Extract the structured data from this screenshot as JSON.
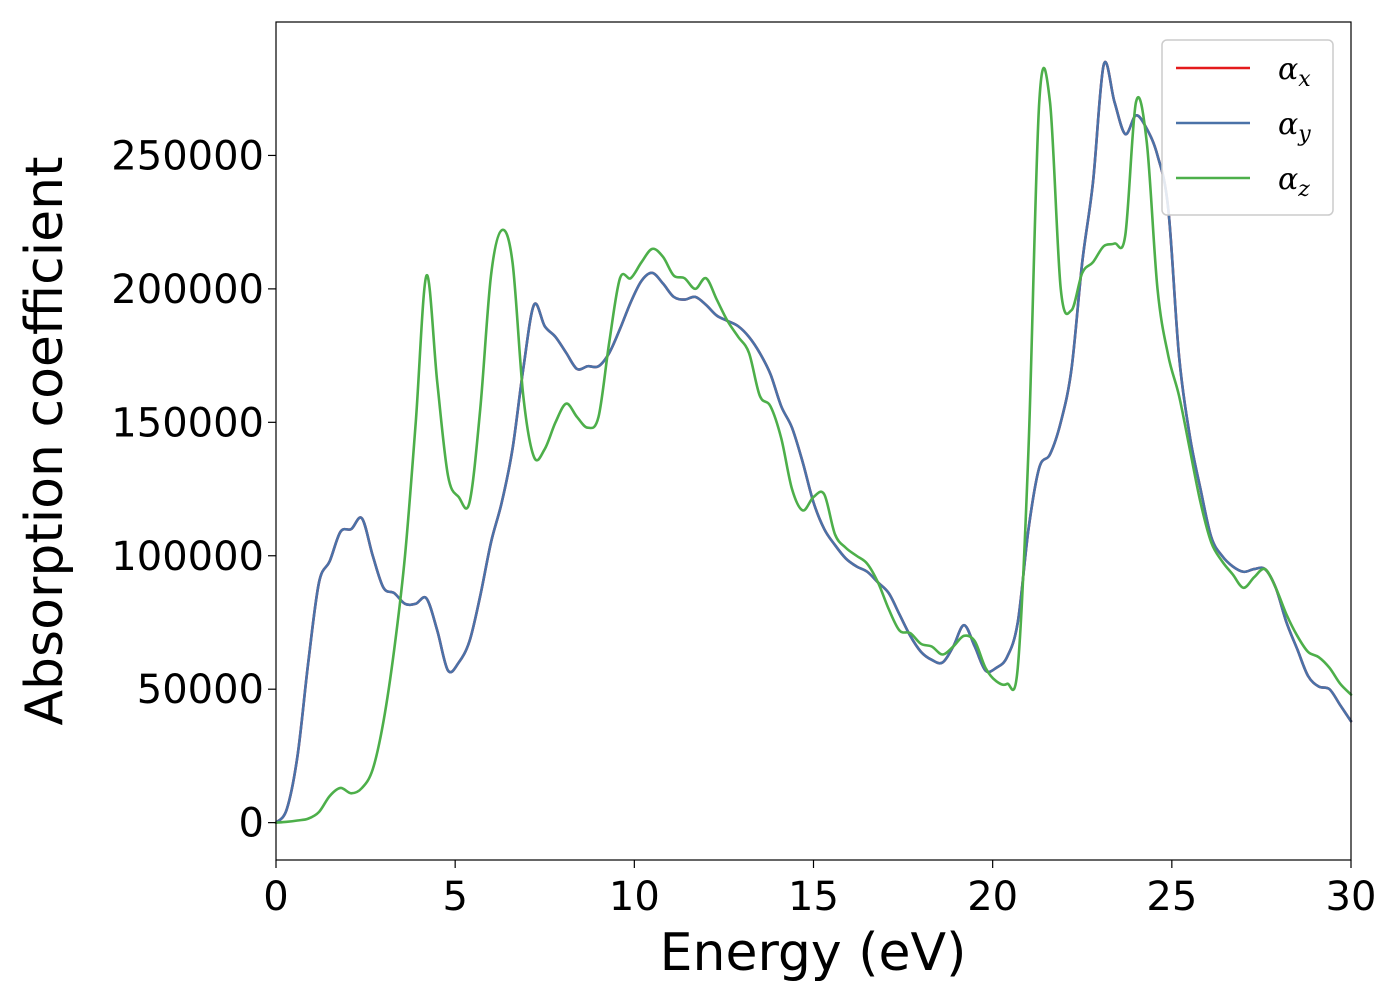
{
  "chart_data": {
    "type": "line",
    "xlabel": "Energy (eV)",
    "ylabel": "Absorption coefficient",
    "xlim": [
      0,
      30
    ],
    "ylim": [
      -14000,
      300000
    ],
    "xticks": [
      0,
      5,
      10,
      15,
      20,
      25,
      30
    ],
    "yticks": [
      0,
      50000,
      100000,
      150000,
      200000,
      250000
    ],
    "grid": false,
    "legend_position": "top-right",
    "series": [
      {
        "name": "α",
        "subscript": "x",
        "color": "#e41a1c",
        "x": [
          0,
          0.3,
          0.6,
          0.9,
          1.2,
          1.5,
          1.8,
          2.1,
          2.4,
          2.7,
          3.0,
          3.3,
          3.6,
          3.9,
          4.2,
          4.5,
          4.8,
          5.1,
          5.4,
          5.7,
          6.0,
          6.3,
          6.6,
          6.9,
          7.2,
          7.5,
          7.8,
          8.1,
          8.4,
          8.7,
          9.0,
          9.3,
          9.6,
          9.9,
          10.2,
          10.5,
          10.8,
          11.1,
          11.4,
          11.7,
          12.0,
          12.3,
          12.6,
          12.9,
          13.2,
          13.5,
          13.8,
          14.1,
          14.4,
          14.7,
          15.0,
          15.3,
          15.6,
          15.9,
          16.2,
          16.5,
          16.8,
          17.1,
          17.4,
          17.7,
          18.0,
          18.3,
          18.6,
          18.9,
          19.2,
          19.5,
          19.8,
          20.1,
          20.4,
          20.7,
          21.0,
          21.3,
          21.6,
          21.9,
          22.2,
          22.5,
          22.8,
          23.1,
          23.4,
          23.7,
          24.0,
          24.3,
          24.6,
          24.9,
          25.2,
          25.5,
          25.8,
          26.1,
          26.4,
          26.7,
          27.0,
          27.3,
          27.6,
          27.9,
          28.2,
          28.5,
          28.8,
          29.1,
          29.4,
          29.7,
          30.0
        ],
        "y": [
          0,
          5000,
          25000,
          60000,
          90000,
          98000,
          109000,
          110000,
          114000,
          100000,
          88000,
          86000,
          82000,
          82000,
          84000,
          72000,
          57000,
          60000,
          68000,
          85000,
          105000,
          120000,
          140000,
          170000,
          194000,
          186000,
          182000,
          176000,
          170000,
          171000,
          171000,
          176000,
          185000,
          195000,
          203000,
          206000,
          202000,
          197000,
          196000,
          197000,
          194000,
          190000,
          188000,
          186000,
          182000,
          176000,
          168000,
          156000,
          148000,
          135000,
          120000,
          110000,
          104000,
          99000,
          96000,
          94000,
          90000,
          86000,
          78000,
          70000,
          64000,
          61000,
          60000,
          66000,
          74000,
          66000,
          57000,
          58000,
          62000,
          75000,
          110000,
          133000,
          138000,
          150000,
          170000,
          210000,
          240000,
          284000,
          270000,
          258000,
          265000,
          260000,
          250000,
          230000,
          175000,
          145000,
          125000,
          107000,
          100000,
          96000,
          94000,
          95000,
          95000,
          88000,
          75000,
          65000,
          55000,
          51000,
          50000,
          44000,
          38000
        ]
      },
      {
        "name": "α",
        "subscript": "y",
        "color": "#4a72a8",
        "x": [
          0,
          0.3,
          0.6,
          0.9,
          1.2,
          1.5,
          1.8,
          2.1,
          2.4,
          2.7,
          3.0,
          3.3,
          3.6,
          3.9,
          4.2,
          4.5,
          4.8,
          5.1,
          5.4,
          5.7,
          6.0,
          6.3,
          6.6,
          6.9,
          7.2,
          7.5,
          7.8,
          8.1,
          8.4,
          8.7,
          9.0,
          9.3,
          9.6,
          9.9,
          10.2,
          10.5,
          10.8,
          11.1,
          11.4,
          11.7,
          12.0,
          12.3,
          12.6,
          12.9,
          13.2,
          13.5,
          13.8,
          14.1,
          14.4,
          14.7,
          15.0,
          15.3,
          15.6,
          15.9,
          16.2,
          16.5,
          16.8,
          17.1,
          17.4,
          17.7,
          18.0,
          18.3,
          18.6,
          18.9,
          19.2,
          19.5,
          19.8,
          20.1,
          20.4,
          20.7,
          21.0,
          21.3,
          21.6,
          21.9,
          22.2,
          22.5,
          22.8,
          23.1,
          23.4,
          23.7,
          24.0,
          24.3,
          24.6,
          24.9,
          25.2,
          25.5,
          25.8,
          26.1,
          26.4,
          26.7,
          27.0,
          27.3,
          27.6,
          27.9,
          28.2,
          28.5,
          28.8,
          29.1,
          29.4,
          29.7,
          30.0
        ],
        "y": [
          0,
          5000,
          25000,
          60000,
          90000,
          98000,
          109000,
          110000,
          114000,
          100000,
          88000,
          86000,
          82000,
          82000,
          84000,
          72000,
          57000,
          60000,
          68000,
          85000,
          105000,
          120000,
          140000,
          170000,
          194000,
          186000,
          182000,
          176000,
          170000,
          171000,
          171000,
          176000,
          185000,
          195000,
          203000,
          206000,
          202000,
          197000,
          196000,
          197000,
          194000,
          190000,
          188000,
          186000,
          182000,
          176000,
          168000,
          156000,
          148000,
          135000,
          120000,
          110000,
          104000,
          99000,
          96000,
          94000,
          90000,
          86000,
          78000,
          70000,
          64000,
          61000,
          60000,
          66000,
          74000,
          66000,
          57000,
          58000,
          62000,
          75000,
          110000,
          133000,
          138000,
          150000,
          170000,
          210000,
          240000,
          284000,
          270000,
          258000,
          265000,
          260000,
          250000,
          230000,
          175000,
          145000,
          125000,
          107000,
          100000,
          96000,
          94000,
          95000,
          95000,
          88000,
          75000,
          65000,
          55000,
          51000,
          50000,
          44000,
          38000
        ]
      },
      {
        "name": "α",
        "subscript": "z",
        "color": "#4daf4a",
        "x": [
          0,
          0.3,
          0.6,
          0.9,
          1.2,
          1.5,
          1.8,
          2.1,
          2.4,
          2.7,
          3.0,
          3.3,
          3.6,
          3.9,
          4.2,
          4.5,
          4.8,
          5.1,
          5.4,
          5.7,
          6.0,
          6.3,
          6.6,
          6.9,
          7.2,
          7.5,
          7.8,
          8.1,
          8.4,
          8.7,
          9.0,
          9.3,
          9.6,
          9.9,
          10.2,
          10.5,
          10.8,
          11.1,
          11.4,
          11.7,
          12.0,
          12.3,
          12.6,
          12.9,
          13.2,
          13.5,
          13.8,
          14.1,
          14.4,
          14.7,
          15.0,
          15.3,
          15.6,
          15.9,
          16.2,
          16.5,
          16.8,
          17.1,
          17.4,
          17.7,
          18.0,
          18.3,
          18.6,
          18.9,
          19.2,
          19.5,
          19.8,
          20.1,
          20.4,
          20.7,
          21.0,
          21.3,
          21.6,
          21.9,
          22.2,
          22.5,
          22.8,
          23.1,
          23.4,
          23.7,
          24.0,
          24.3,
          24.6,
          24.9,
          25.2,
          25.5,
          25.8,
          26.1,
          26.4,
          26.7,
          27.0,
          27.3,
          27.6,
          27.9,
          28.2,
          28.5,
          28.8,
          29.1,
          29.4,
          29.7,
          30.0
        ],
        "y": [
          0,
          300,
          800,
          1500,
          4000,
          10000,
          13000,
          11000,
          13000,
          20000,
          38000,
          65000,
          100000,
          150000,
          205000,
          165000,
          130000,
          122000,
          120000,
          155000,
          205000,
          222000,
          210000,
          160000,
          137000,
          140000,
          150000,
          157000,
          152000,
          148000,
          152000,
          180000,
          204000,
          204000,
          210000,
          215000,
          212000,
          205000,
          204000,
          200000,
          204000,
          196000,
          188000,
          182000,
          176000,
          160000,
          156000,
          144000,
          125000,
          117000,
          122000,
          123000,
          108000,
          103000,
          100000,
          97000,
          90000,
          80000,
          72000,
          71000,
          67000,
          66000,
          63000,
          66000,
          70000,
          68000,
          58000,
          53000,
          52000,
          58000,
          140000,
          270000,
          270000,
          200000,
          192000,
          206000,
          210000,
          216000,
          217000,
          220000,
          270000,
          255000,
          200000,
          175000,
          160000,
          140000,
          120000,
          105000,
          98000,
          93000,
          88000,
          92000,
          95000,
          88000,
          78000,
          70000,
          64000,
          62000,
          58000,
          52000,
          48000
        ]
      }
    ]
  }
}
